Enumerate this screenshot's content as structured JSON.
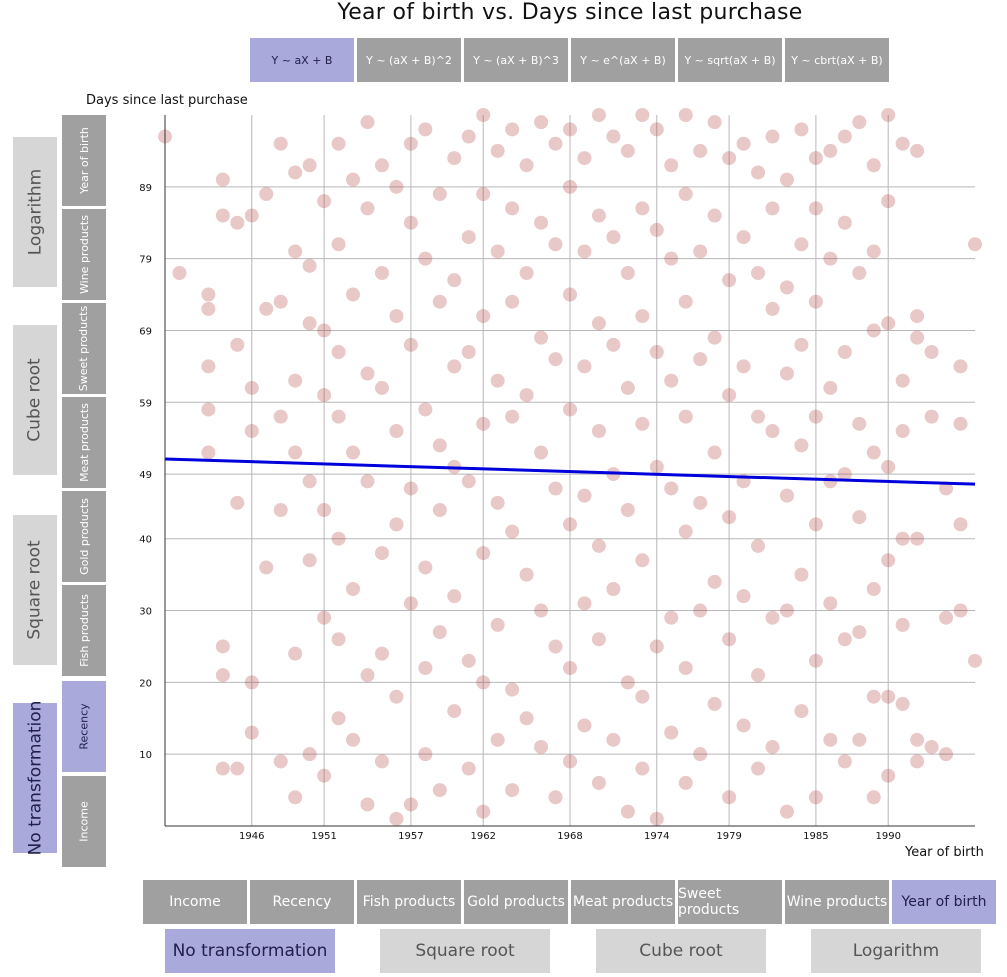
{
  "title": "Year of birth vs. Days since last purchase",
  "model_tabs": [
    "Y ~ aX + B",
    "Y ~ (aX + B)^2",
    "Y ~ (aX + B)^3",
    "Y ~ e^(aX + B)",
    "Y ~ sqrt(aX + B)",
    "Y ~ cbrt(aX + B)"
  ],
  "model_active_index": 0,
  "y_transforms": [
    "Logarithm",
    "Cube root",
    "Square root",
    "No transformation"
  ],
  "y_transform_active_index": 3,
  "y_variables": [
    "Year of birth",
    "Wine products",
    "Sweet products",
    "Meat products",
    "Gold products",
    "Fish products",
    "Recency",
    "Income"
  ],
  "y_variable_active_index": 6,
  "x_variables": [
    "Income",
    "Recency",
    "Fish products",
    "Gold products",
    "Meat products",
    "Sweet products",
    "Wine products",
    "Year of birth"
  ],
  "x_variable_active_index": 7,
  "x_transforms": [
    "No transformation",
    "Square root",
    "Cube root",
    "Logarithm"
  ],
  "x_transform_active_index": 0,
  "colors": {
    "point": "#b03a3a",
    "trend": "#0000dd",
    "active": "#a9a9dc",
    "inactive_button": "#a0a0a0",
    "inactive_transform": "#d6d6d6"
  },
  "chart_data": {
    "type": "scatter",
    "title": "Year of birth vs. Days since last purchase",
    "xlabel": "Year of birth",
    "ylabel": "Days since last purchase",
    "xlim": [
      1940,
      1996
    ],
    "ylim": [
      0,
      99
    ],
    "x_ticks": [
      1946,
      1951,
      1957,
      1962,
      1968,
      1974,
      1979,
      1985,
      1990
    ],
    "y_ticks": [
      10,
      20,
      30,
      40,
      49,
      59,
      69,
      79,
      89
    ],
    "grid": true,
    "trend_line": {
      "model": "Y ~ aX + B",
      "x": [
        1940,
        1996
      ],
      "y": [
        51.1,
        47.6
      ]
    },
    "points_note": "approx. 2000 customers; semi-transparent points spread uniformly over recency 0-99 for birth years 1940-1996",
    "points": [
      [
        1940,
        96
      ],
      [
        1941,
        77
      ],
      [
        1943,
        74
      ],
      [
        1943,
        72
      ],
      [
        1943,
        64
      ],
      [
        1943,
        58
      ],
      [
        1943,
        52
      ],
      [
        1944,
        90
      ],
      [
        1944,
        85
      ],
      [
        1944,
        25
      ],
      [
        1944,
        21
      ],
      [
        1944,
        8
      ],
      [
        1945,
        84
      ],
      [
        1945,
        67
      ],
      [
        1945,
        45
      ],
      [
        1945,
        8
      ],
      [
        1946,
        85
      ],
      [
        1946,
        61
      ],
      [
        1946,
        55
      ],
      [
        1946,
        20
      ],
      [
        1946,
        13
      ],
      [
        1947,
        88
      ],
      [
        1947,
        72
      ],
      [
        1947,
        36
      ],
      [
        1948,
        95
      ],
      [
        1948,
        73
      ],
      [
        1948,
        57
      ],
      [
        1948,
        44
      ],
      [
        1948,
        9
      ],
      [
        1949,
        91
      ],
      [
        1949,
        80
      ],
      [
        1949,
        62
      ],
      [
        1949,
        52
      ],
      [
        1949,
        24
      ],
      [
        1949,
        4
      ],
      [
        1950,
        92
      ],
      [
        1950,
        78
      ],
      [
        1950,
        70
      ],
      [
        1950,
        48
      ],
      [
        1950,
        37
      ],
      [
        1950,
        10
      ],
      [
        1951,
        87
      ],
      [
        1951,
        69
      ],
      [
        1951,
        60
      ],
      [
        1951,
        44
      ],
      [
        1951,
        29
      ],
      [
        1951,
        7
      ],
      [
        1952,
        95
      ],
      [
        1952,
        81
      ],
      [
        1952,
        66
      ],
      [
        1952,
        57
      ],
      [
        1952,
        40
      ],
      [
        1952,
        26
      ],
      [
        1952,
        15
      ],
      [
        1953,
        90
      ],
      [
        1953,
        74
      ],
      [
        1953,
        52
      ],
      [
        1953,
        33
      ],
      [
        1953,
        12
      ],
      [
        1954,
        98
      ],
      [
        1954,
        86
      ],
      [
        1954,
        63
      ],
      [
        1954,
        48
      ],
      [
        1954,
        21
      ],
      [
        1954,
        3
      ],
      [
        1955,
        92
      ],
      [
        1955,
        77
      ],
      [
        1955,
        61
      ],
      [
        1955,
        38
      ],
      [
        1955,
        24
      ],
      [
        1955,
        9
      ],
      [
        1956,
        89
      ],
      [
        1956,
        71
      ],
      [
        1956,
        55
      ],
      [
        1956,
        42
      ],
      [
        1956,
        18
      ],
      [
        1956,
        1
      ],
      [
        1957,
        95
      ],
      [
        1957,
        84
      ],
      [
        1957,
        67
      ],
      [
        1957,
        47
      ],
      [
        1957,
        31
      ],
      [
        1957,
        3
      ],
      [
        1958,
        97
      ],
      [
        1958,
        79
      ],
      [
        1958,
        58
      ],
      [
        1958,
        36
      ],
      [
        1958,
        22
      ],
      [
        1958,
        10
      ],
      [
        1959,
        88
      ],
      [
        1959,
        73
      ],
      [
        1959,
        53
      ],
      [
        1959,
        44
      ],
      [
        1959,
        27
      ],
      [
        1959,
        5
      ],
      [
        1960,
        93
      ],
      [
        1960,
        76
      ],
      [
        1960,
        64
      ],
      [
        1960,
        50
      ],
      [
        1960,
        32
      ],
      [
        1960,
        16
      ],
      [
        1961,
        96
      ],
      [
        1961,
        82
      ],
      [
        1961,
        66
      ],
      [
        1961,
        48
      ],
      [
        1961,
        23
      ],
      [
        1961,
        8
      ],
      [
        1962,
        99
      ],
      [
        1962,
        88
      ],
      [
        1962,
        71
      ],
      [
        1962,
        56
      ],
      [
        1962,
        38
      ],
      [
        1962,
        20
      ],
      [
        1962,
        2
      ],
      [
        1963,
        94
      ],
      [
        1963,
        80
      ],
      [
        1963,
        62
      ],
      [
        1963,
        45
      ],
      [
        1963,
        28
      ],
      [
        1963,
        12
      ],
      [
        1964,
        97
      ],
      [
        1964,
        86
      ],
      [
        1964,
        73
      ],
      [
        1964,
        57
      ],
      [
        1964,
        41
      ],
      [
        1964,
        19
      ],
      [
        1964,
        5
      ],
      [
        1965,
        92
      ],
      [
        1965,
        77
      ],
      [
        1965,
        60
      ],
      [
        1965,
        35
      ],
      [
        1965,
        15
      ],
      [
        1966,
        98
      ],
      [
        1966,
        84
      ],
      [
        1966,
        68
      ],
      [
        1966,
        52
      ],
      [
        1966,
        30
      ],
      [
        1966,
        11
      ],
      [
        1967,
        95
      ],
      [
        1967,
        81
      ],
      [
        1967,
        65
      ],
      [
        1967,
        47
      ],
      [
        1967,
        25
      ],
      [
        1967,
        4
      ],
      [
        1968,
        97
      ],
      [
        1968,
        89
      ],
      [
        1968,
        74
      ],
      [
        1968,
        58
      ],
      [
        1968,
        42
      ],
      [
        1968,
        22
      ],
      [
        1968,
        9
      ],
      [
        1969,
        93
      ],
      [
        1969,
        80
      ],
      [
        1969,
        64
      ],
      [
        1969,
        46
      ],
      [
        1969,
        31
      ],
      [
        1969,
        14
      ],
      [
        1970,
        99
      ],
      [
        1970,
        85
      ],
      [
        1970,
        70
      ],
      [
        1970,
        55
      ],
      [
        1970,
        39
      ],
      [
        1970,
        26
      ],
      [
        1970,
        6
      ],
      [
        1971,
        96
      ],
      [
        1971,
        82
      ],
      [
        1971,
        67
      ],
      [
        1971,
        49
      ],
      [
        1971,
        33
      ],
      [
        1971,
        12
      ],
      [
        1972,
        94
      ],
      [
        1972,
        77
      ],
      [
        1972,
        61
      ],
      [
        1972,
        44
      ],
      [
        1972,
        20
      ],
      [
        1972,
        2
      ],
      [
        1973,
        99
      ],
      [
        1973,
        86
      ],
      [
        1973,
        71
      ],
      [
        1973,
        56
      ],
      [
        1973,
        37
      ],
      [
        1973,
        18
      ],
      [
        1973,
        8
      ],
      [
        1974,
        97
      ],
      [
        1974,
        83
      ],
      [
        1974,
        66
      ],
      [
        1974,
        50
      ],
      [
        1974,
        25
      ],
      [
        1974,
        1
      ],
      [
        1975,
        92
      ],
      [
        1975,
        79
      ],
      [
        1975,
        62
      ],
      [
        1975,
        47
      ],
      [
        1975,
        29
      ],
      [
        1975,
        13
      ],
      [
        1976,
        99
      ],
      [
        1976,
        88
      ],
      [
        1976,
        73
      ],
      [
        1976,
        57
      ],
      [
        1976,
        41
      ],
      [
        1976,
        22
      ],
      [
        1976,
        6
      ],
      [
        1977,
        94
      ],
      [
        1977,
        80
      ],
      [
        1977,
        65
      ],
      [
        1977,
        45
      ],
      [
        1977,
        30
      ],
      [
        1977,
        10
      ],
      [
        1978,
        98
      ],
      [
        1978,
        85
      ],
      [
        1978,
        68
      ],
      [
        1978,
        52
      ],
      [
        1978,
        34
      ],
      [
        1978,
        17
      ],
      [
        1979,
        93
      ],
      [
        1979,
        76
      ],
      [
        1979,
        60
      ],
      [
        1979,
        43
      ],
      [
        1979,
        26
      ],
      [
        1979,
        4
      ],
      [
        1980,
        95
      ],
      [
        1980,
        82
      ],
      [
        1980,
        64
      ],
      [
        1980,
        48
      ],
      [
        1980,
        32
      ],
      [
        1980,
        14
      ],
      [
        1981,
        91
      ],
      [
        1981,
        77
      ],
      [
        1981,
        57
      ],
      [
        1981,
        39
      ],
      [
        1981,
        21
      ],
      [
        1981,
        8
      ],
      [
        1982,
        96
      ],
      [
        1982,
        86
      ],
      [
        1982,
        72
      ],
      [
        1982,
        55
      ],
      [
        1982,
        29
      ],
      [
        1982,
        11
      ],
      [
        1983,
        90
      ],
      [
        1983,
        75
      ],
      [
        1983,
        63
      ],
      [
        1983,
        46
      ],
      [
        1983,
        30
      ],
      [
        1983,
        2
      ],
      [
        1984,
        97
      ],
      [
        1984,
        81
      ],
      [
        1984,
        67
      ],
      [
        1984,
        53
      ],
      [
        1984,
        35
      ],
      [
        1984,
        16
      ],
      [
        1985,
        93
      ],
      [
        1985,
        86
      ],
      [
        1985,
        73
      ],
      [
        1985,
        57
      ],
      [
        1985,
        42
      ],
      [
        1985,
        23
      ],
      [
        1985,
        4
      ],
      [
        1986,
        94
      ],
      [
        1986,
        79
      ],
      [
        1986,
        61
      ],
      [
        1986,
        48
      ],
      [
        1986,
        31
      ],
      [
        1986,
        12
      ],
      [
        1987,
        96
      ],
      [
        1987,
        84
      ],
      [
        1987,
        66
      ],
      [
        1987,
        49
      ],
      [
        1987,
        26
      ],
      [
        1987,
        9
      ],
      [
        1988,
        98
      ],
      [
        1988,
        77
      ],
      [
        1988,
        56
      ],
      [
        1988,
        43
      ],
      [
        1988,
        27
      ],
      [
        1988,
        12
      ],
      [
        1989,
        92
      ],
      [
        1989,
        80
      ],
      [
        1989,
        69
      ],
      [
        1989,
        52
      ],
      [
        1989,
        33
      ],
      [
        1989,
        18
      ],
      [
        1989,
        4
      ],
      [
        1990,
        99
      ],
      [
        1990,
        87
      ],
      [
        1990,
        70
      ],
      [
        1990,
        50
      ],
      [
        1990,
        37
      ],
      [
        1990,
        18
      ],
      [
        1990,
        7
      ],
      [
        1991,
        95
      ],
      [
        1991,
        62
      ],
      [
        1991,
        55
      ],
      [
        1991,
        40
      ],
      [
        1991,
        28
      ],
      [
        1991,
        17
      ],
      [
        1992,
        94
      ],
      [
        1992,
        71
      ],
      [
        1992,
        68
      ],
      [
        1992,
        40
      ],
      [
        1992,
        12
      ],
      [
        1992,
        9
      ],
      [
        1993,
        66
      ],
      [
        1993,
        57
      ],
      [
        1993,
        11
      ],
      [
        1994,
        47
      ],
      [
        1994,
        29
      ],
      [
        1994,
        10
      ],
      [
        1995,
        64
      ],
      [
        1995,
        56
      ],
      [
        1995,
        42
      ],
      [
        1995,
        30
      ],
      [
        1996,
        81
      ],
      [
        1996,
        23
      ]
    ]
  }
}
